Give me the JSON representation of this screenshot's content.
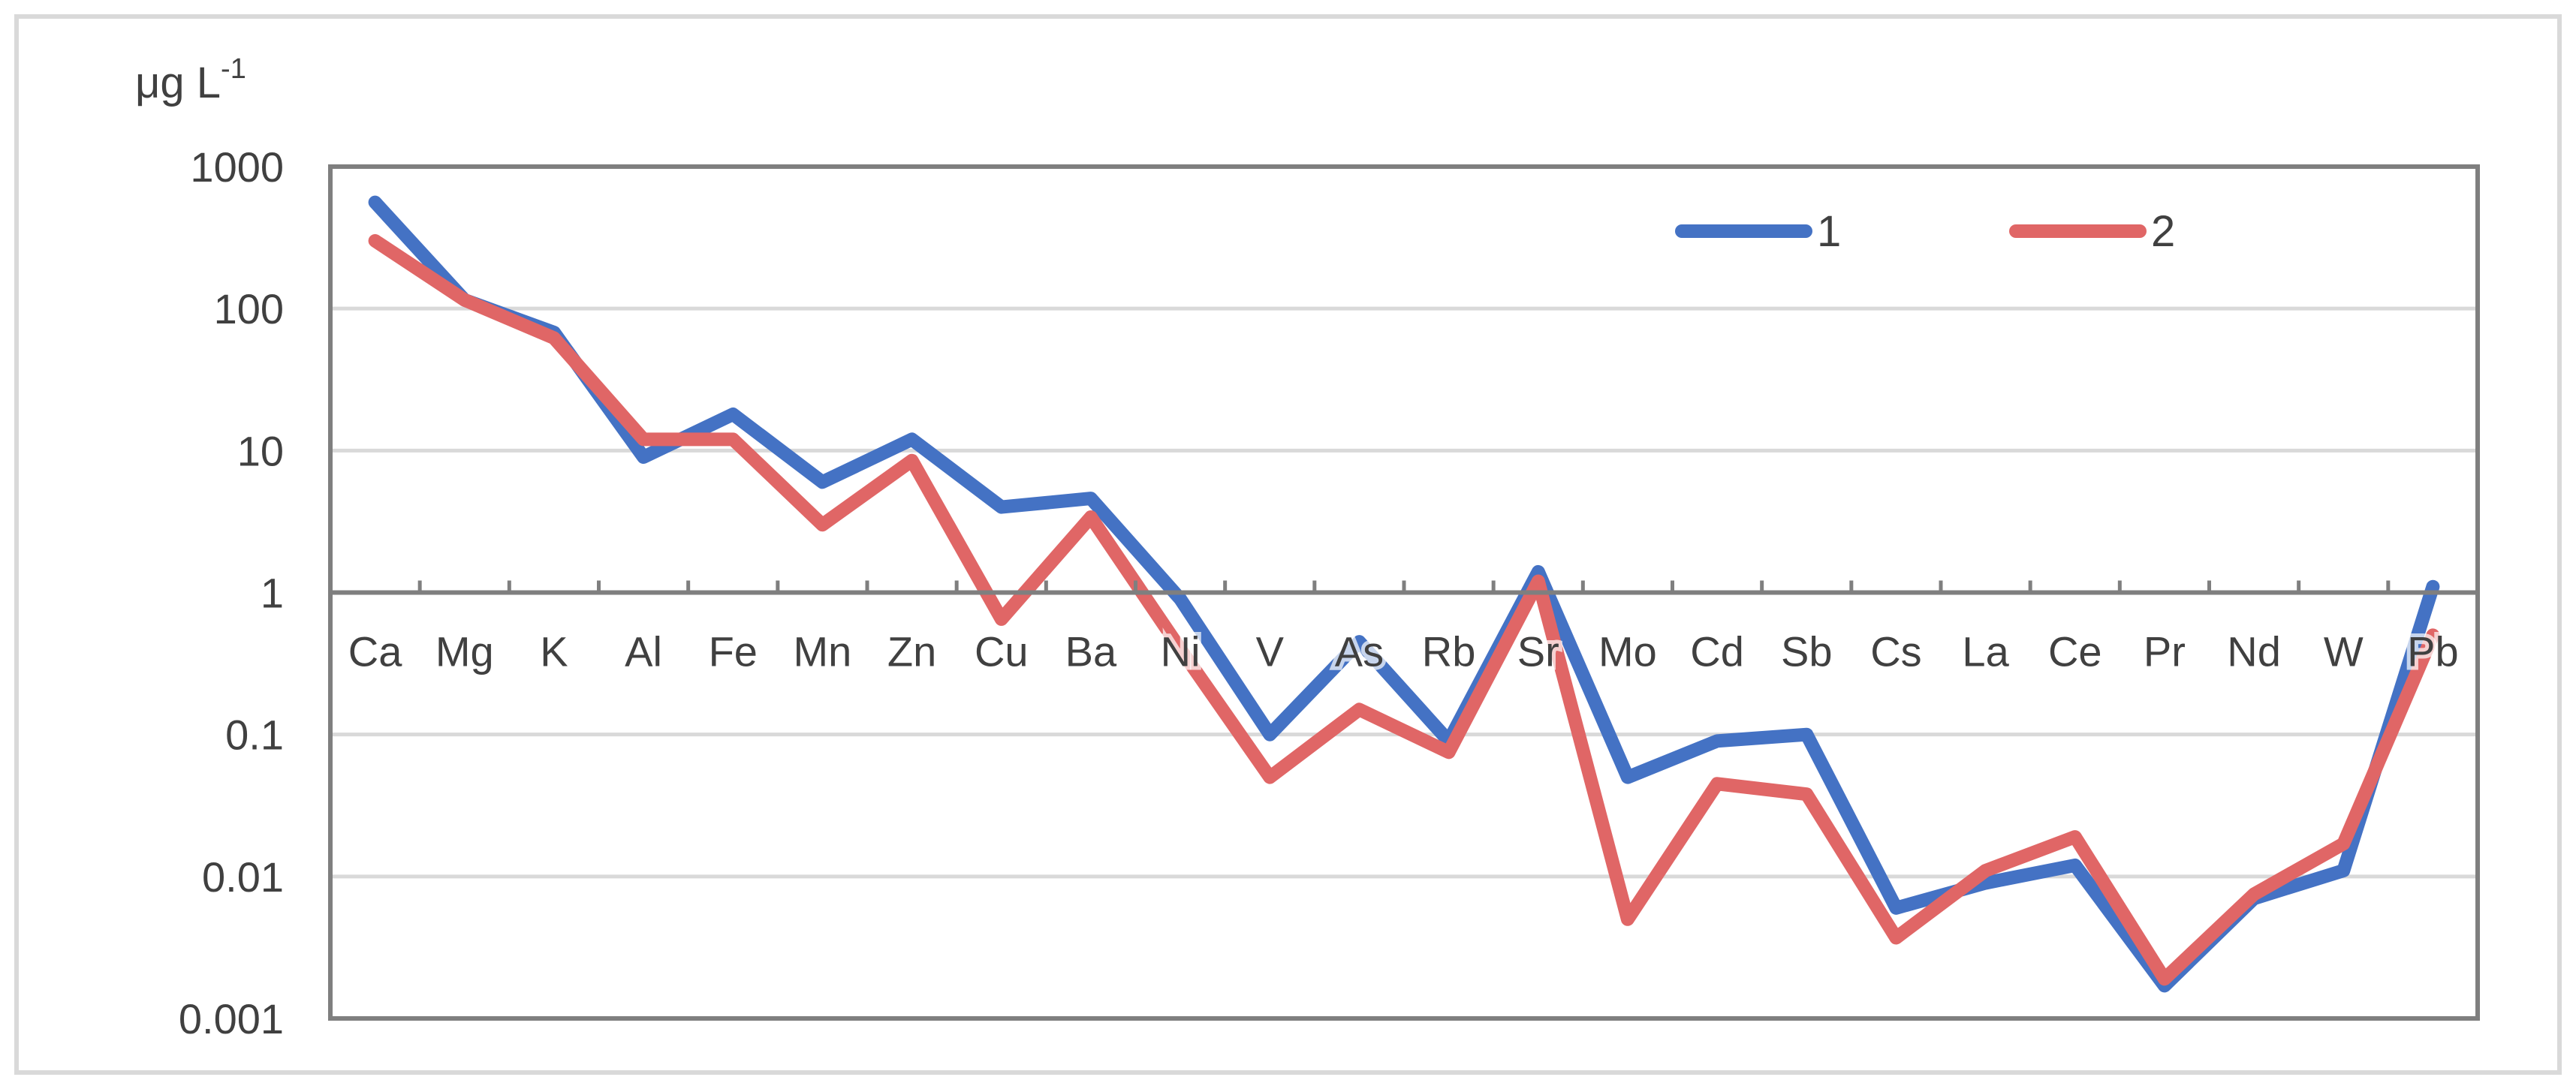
{
  "chart_data": {
    "type": "line",
    "yscale": "log",
    "ylabel": "μg L",
    "ylabel_exponent": "-1",
    "ylim": [
      0.001,
      1000
    ],
    "yticks": [
      1000,
      100,
      10,
      1,
      0.1,
      0.01,
      0.001
    ],
    "ytick_labels": [
      "1000",
      "100",
      "10",
      "1",
      "0.1",
      "0.01",
      "0.001"
    ],
    "x_axis_crosses_at": 1,
    "categories": [
      "Ca",
      "Mg",
      "K",
      "Al",
      "Fe",
      "Mn",
      "Zn",
      "Cu",
      "Ba",
      "Ni",
      "V",
      "As",
      "Rb",
      "Sr",
      "Mo",
      "Cd",
      "Sb",
      "Cs",
      "La",
      "Ce",
      "Pr",
      "Nd",
      "W",
      "Pb"
    ],
    "grid": true,
    "legend_position": "top-right",
    "series": [
      {
        "name": "1",
        "color": "#4472C4",
        "values": [
          560,
          115,
          68,
          9,
          18,
          6,
          12,
          4,
          4.6,
          0.9,
          0.1,
          0.45,
          0.09,
          1.4,
          0.05,
          0.09,
          0.1,
          0.006,
          0.009,
          0.012,
          0.0017,
          0.007,
          0.011,
          1.1
        ]
      },
      {
        "name": "2",
        "color": "#E06666",
        "values": [
          300,
          115,
          62,
          12,
          12,
          3,
          8.5,
          0.65,
          3.4,
          0.4,
          0.05,
          0.15,
          0.075,
          1.2,
          0.005,
          0.045,
          0.038,
          0.0037,
          0.011,
          0.019,
          0.0019,
          0.0075,
          0.017,
          0.5
        ]
      }
    ]
  }
}
